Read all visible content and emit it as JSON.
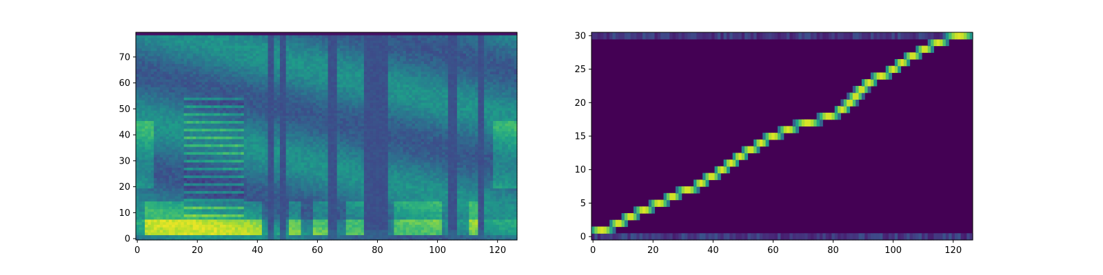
{
  "figure": {
    "background": "#ffffff"
  },
  "chart_data": [
    {
      "type": "heatmap",
      "colormap": "viridis",
      "xlim": [
        0,
        127
      ],
      "ylim": [
        0,
        80
      ],
      "x_ticks": [
        0,
        20,
        40,
        60,
        80,
        100,
        120
      ],
      "y_ticks": [
        0,
        10,
        20,
        30,
        40,
        50,
        60,
        70
      ],
      "x_tick_labels": [
        "0",
        "20",
        "40",
        "60",
        "80",
        "100",
        "120"
      ],
      "y_tick_labels": [
        "0",
        "10",
        "20",
        "30",
        "40",
        "50",
        "60",
        "70"
      ],
      "title": "",
      "xlabel": "",
      "ylabel": "",
      "grid": false,
      "silence_frames": [
        [
          44,
          46
        ],
        [
          48,
          50
        ],
        [
          64,
          67
        ],
        [
          76,
          84
        ],
        [
          104,
          107
        ],
        [
          114,
          116
        ]
      ],
      "strong_low_band_frames": [
        [
          3,
          42
        ],
        [
          51,
          55
        ],
        [
          59,
          64
        ],
        [
          70,
          77
        ],
        [
          86,
          102
        ],
        [
          111,
          115
        ]
      ],
      "harmonic_frames": [
        16,
        36
      ]
    },
    {
      "type": "heatmap",
      "colormap": "viridis",
      "xlim": [
        0,
        127
      ],
      "ylim": [
        0,
        31
      ],
      "x_ticks": [
        0,
        20,
        40,
        60,
        80,
        100,
        120
      ],
      "y_ticks": [
        0,
        5,
        10,
        15,
        20,
        25,
        30
      ],
      "x_tick_labels": [
        "0",
        "20",
        "40",
        "60",
        "80",
        "100",
        "120"
      ],
      "y_tick_labels": [
        "0",
        "5",
        "10",
        "15",
        "20",
        "25",
        "30"
      ],
      "title": "",
      "xlabel": "",
      "ylabel": "",
      "grid": false,
      "alignment_path": [
        {
          "row": 1,
          "x_start": 0,
          "x_end": 7
        },
        {
          "row": 2,
          "x_start": 7,
          "x_end": 11
        },
        {
          "row": 3,
          "x_start": 11,
          "x_end": 15
        },
        {
          "row": 4,
          "x_start": 15,
          "x_end": 20
        },
        {
          "row": 5,
          "x_start": 20,
          "x_end": 25
        },
        {
          "row": 6,
          "x_start": 25,
          "x_end": 29
        },
        {
          "row": 7,
          "x_start": 29,
          "x_end": 35
        },
        {
          "row": 8,
          "x_start": 35,
          "x_end": 38
        },
        {
          "row": 9,
          "x_start": 38,
          "x_end": 42
        },
        {
          "row": 10,
          "x_start": 42,
          "x_end": 45
        },
        {
          "row": 11,
          "x_start": 45,
          "x_end": 48
        },
        {
          "row": 12,
          "x_start": 48,
          "x_end": 51
        },
        {
          "row": 13,
          "x_start": 51,
          "x_end": 55
        },
        {
          "row": 14,
          "x_start": 55,
          "x_end": 58
        },
        {
          "row": 15,
          "x_start": 58,
          "x_end": 63
        },
        {
          "row": 16,
          "x_start": 63,
          "x_end": 68
        },
        {
          "row": 17,
          "x_start": 68,
          "x_end": 76
        },
        {
          "row": 18,
          "x_start": 76,
          "x_end": 82
        },
        {
          "row": 19,
          "x_start": 82,
          "x_end": 85
        },
        {
          "row": 20,
          "x_start": 85,
          "x_end": 87
        },
        {
          "row": 21,
          "x_start": 87,
          "x_end": 89
        },
        {
          "row": 22,
          "x_start": 89,
          "x_end": 91
        },
        {
          "row": 23,
          "x_start": 91,
          "x_end": 94
        },
        {
          "row": 24,
          "x_start": 94,
          "x_end": 99
        },
        {
          "row": 25,
          "x_start": 99,
          "x_end": 102
        },
        {
          "row": 26,
          "x_start": 102,
          "x_end": 105
        },
        {
          "row": 27,
          "x_start": 105,
          "x_end": 109
        },
        {
          "row": 28,
          "x_start": 109,
          "x_end": 113
        },
        {
          "row": 29,
          "x_start": 113,
          "x_end": 118
        },
        {
          "row": 30,
          "x_start": 118,
          "x_end": 127
        }
      ],
      "edge_rows": [
        0,
        30
      ]
    }
  ]
}
